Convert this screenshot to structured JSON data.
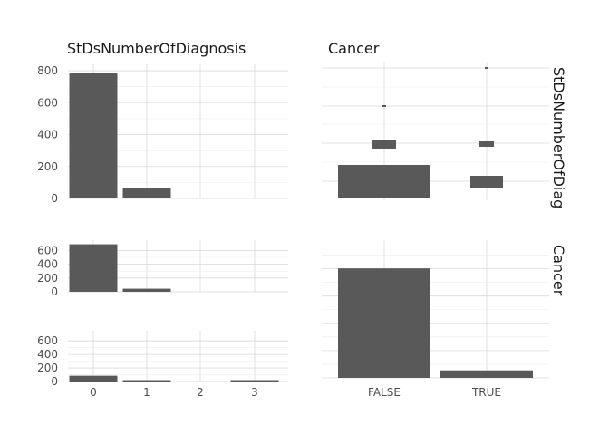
{
  "chart_data": [
    {
      "type": "bar",
      "panel": "row-1-col-1",
      "title": "StDsNumberOfDiagnosis",
      "xlabel": "",
      "ylabel": "",
      "categories": [
        "0",
        "1",
        "2",
        "3"
      ],
      "values": [
        787,
        68,
        0,
        0
      ],
      "ylim": [
        0,
        840
      ],
      "yticks": [
        "0",
        "200",
        "400",
        "600",
        "800"
      ],
      "grid": true
    },
    {
      "type": "bar",
      "panel": "row-1-col-2",
      "title": "Cancer",
      "strip_label": "StDsNumberOfDiag",
      "xlabel": "",
      "ylabel": "",
      "categories": [
        "FALSE",
        "TRUE"
      ],
      "series": [
        {
          "values": [
            0,
            0
          ]
        },
        {
          "values": [
            1,
            1
          ]
        },
        {
          "values": [
            0,
            1
          ]
        },
        {
          "values": [
            1,
            0
          ]
        }
      ],
      "grid": true
    },
    {
      "type": "bar",
      "panel": "row-2-col-1",
      "xlabel": "",
      "ylabel": "",
      "categories": [
        "0",
        "1",
        "2",
        "3"
      ],
      "values": [
        690,
        45,
        0,
        0
      ],
      "ylim": [
        0,
        750
      ],
      "yticks": [
        "0",
        "200",
        "400",
        "600"
      ],
      "grid": true
    },
    {
      "type": "bar",
      "panel": "row-3-col-1",
      "xlabel": "",
      "ylabel": "",
      "categories": [
        "0",
        "1",
        "2",
        "3"
      ],
      "values": [
        85,
        18,
        0,
        4
      ],
      "ylim": [
        0,
        750
      ],
      "yticks": [
        "0",
        "200",
        "400",
        "600"
      ],
      "grid": true
    },
    {
      "type": "bar",
      "panel": "row-2-col-2",
      "strip_label": "Cancer",
      "xlabel": "",
      "ylabel": "",
      "categories": [
        "FALSE",
        "TRUE"
      ],
      "values": [
        803,
        55
      ],
      "x_tick_labels": [
        "FALSE",
        "TRUE"
      ],
      "grid": true
    }
  ],
  "labels": {
    "bottom_left_x_ticks": [
      "0",
      "1",
      "2",
      "3"
    ]
  }
}
